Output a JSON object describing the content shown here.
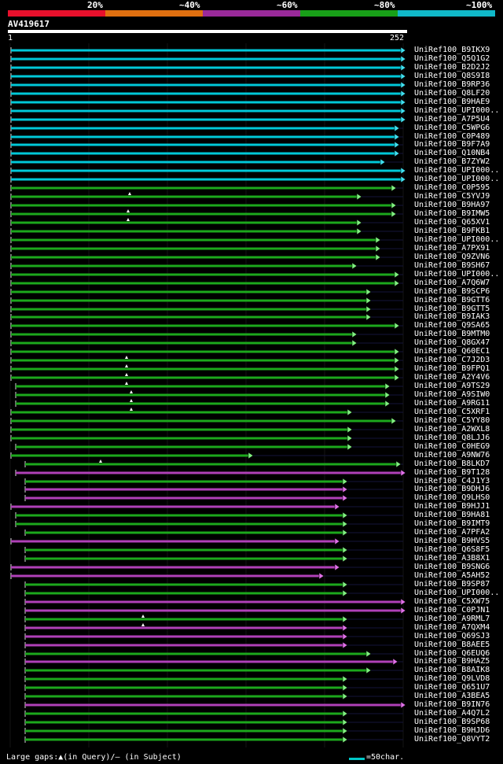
{
  "legend": {
    "labels": [
      "20%",
      "~40%",
      "~60%",
      "~80%",
      "~100%"
    ],
    "colors": [
      "#e8102c",
      "#e07010",
      "#9a2a9a",
      "#18a018",
      "#10b8c8"
    ]
  },
  "query": {
    "id": "AV419617",
    "start": "1",
    "end": "252"
  },
  "hits": [
    {
      "name": "UniRef100_B9IKX9",
      "color": "cyan"
    },
    {
      "name": "UniRef100_Q5Q1G2",
      "color": "cyan"
    },
    {
      "name": "UniRef100_B2D2J2",
      "color": "cyan"
    },
    {
      "name": "UniRef100_Q8S9I8",
      "color": "cyan"
    },
    {
      "name": "UniRef100_B9RP36",
      "color": "cyan"
    },
    {
      "name": "UniRef100_Q8LF20",
      "color": "cyan"
    },
    {
      "name": "UniRef100_B9HAE9",
      "color": "cyan"
    },
    {
      "name": "UniRef100_UPI000..",
      "color": "cyan"
    },
    {
      "name": "UniRef100_A7P5U4",
      "color": "cyan"
    },
    {
      "name": "UniRef100_C5WPG6",
      "color": "cyan"
    },
    {
      "name": "UniRef100_C0P489",
      "color": "cyan"
    },
    {
      "name": "UniRef100_B9F7A9",
      "color": "cyan"
    },
    {
      "name": "UniRef100_Q10NB4",
      "color": "cyan"
    },
    {
      "name": "UniRef100_B7ZYW2",
      "color": "cyan"
    },
    {
      "name": "UniRef100_UPI000..",
      "color": "cyan"
    },
    {
      "name": "UniRef100_UPI000..",
      "color": "cyan"
    },
    {
      "name": "UniRef100_C0P595",
      "color": "green"
    },
    {
      "name": "UniRef100_C5YVJ9",
      "color": "green"
    },
    {
      "name": "UniRef100_B9HA97",
      "color": "green"
    },
    {
      "name": "UniRef100_B9IMW5",
      "color": "green"
    },
    {
      "name": "UniRef100_Q65XV1",
      "color": "green"
    },
    {
      "name": "UniRef100_B9FKB1",
      "color": "green"
    },
    {
      "name": "UniRef100_UPI000..",
      "color": "green"
    },
    {
      "name": "UniRef100_A7PX91",
      "color": "green"
    },
    {
      "name": "UniRef100_Q9ZVN6",
      "color": "green"
    },
    {
      "name": "UniRef100_B9SH67",
      "color": "green"
    },
    {
      "name": "UniRef100_UPI000..",
      "color": "green"
    },
    {
      "name": "UniRef100_A7Q6W7",
      "color": "green"
    },
    {
      "name": "UniRef100_B9SCP6",
      "color": "green"
    },
    {
      "name": "UniRef100_B9GTT6",
      "color": "green"
    },
    {
      "name": "UniRef100_B9GTT5",
      "color": "green"
    },
    {
      "name": "UniRef100_B9IAK3",
      "color": "green"
    },
    {
      "name": "UniRef100_Q9SA65",
      "color": "green"
    },
    {
      "name": "UniRef100_B9MTM0",
      "color": "green"
    },
    {
      "name": "UniRef100_Q8GX47",
      "color": "green"
    },
    {
      "name": "UniRef100_Q60EC1",
      "color": "green"
    },
    {
      "name": "UniRef100_C7J2D3",
      "color": "green"
    },
    {
      "name": "UniRef100_B9FPQ1",
      "color": "green"
    },
    {
      "name": "UniRef100_A2Y4V6",
      "color": "green"
    },
    {
      "name": "UniRef100_A9TS29",
      "color": "green"
    },
    {
      "name": "UniRef100_A9SIW0",
      "color": "green"
    },
    {
      "name": "UniRef100_A9RG11",
      "color": "green"
    },
    {
      "name": "UniRef100_C5XRF1",
      "color": "green"
    },
    {
      "name": "UniRef100_C5YY80",
      "color": "green"
    },
    {
      "name": "UniRef100_A2WXL8",
      "color": "green"
    },
    {
      "name": "UniRef100_Q8LJJ6",
      "color": "green"
    },
    {
      "name": "UniRef100_C0HEG9",
      "color": "green"
    },
    {
      "name": "UniRef100_A9NW76",
      "color": "green"
    },
    {
      "name": "UniRef100_B8LKD7",
      "color": "green"
    },
    {
      "name": "UniRef100_B9T128",
      "color": "purple"
    },
    {
      "name": "UniRef100_C4J1Y3",
      "color": "green"
    },
    {
      "name": "UniRef100_B9DHJ6",
      "color": "purple"
    },
    {
      "name": "UniRef100_Q9LHS0",
      "color": "purple"
    },
    {
      "name": "UniRef100_B9HJJ1",
      "color": "purple"
    },
    {
      "name": "UniRef100_B9HA81",
      "color": "green"
    },
    {
      "name": "UniRef100_B9IMT9",
      "color": "green"
    },
    {
      "name": "UniRef100_A7PFA2",
      "color": "green"
    },
    {
      "name": "UniRef100_B9HVS5",
      "color": "purple"
    },
    {
      "name": "UniRef100_Q6S8F5",
      "color": "green"
    },
    {
      "name": "UniRef100_A3B8X1",
      "color": "green"
    },
    {
      "name": "UniRef100_B9SNG6",
      "color": "purple"
    },
    {
      "name": "UniRef100_A5AH52",
      "color": "purple"
    },
    {
      "name": "UniRef100_B9SP87",
      "color": "green"
    },
    {
      "name": "UniRef100_UPI000..",
      "color": "green"
    },
    {
      "name": "UniRef100_C5XW75",
      "color": "purple"
    },
    {
      "name": "UniRef100_C0PJN1",
      "color": "purple"
    },
    {
      "name": "UniRef100_A9RML7",
      "color": "green"
    },
    {
      "name": "UniRef100_A7QXM4",
      "color": "purple"
    },
    {
      "name": "UniRef100_Q69SJ3",
      "color": "purple"
    },
    {
      "name": "UniRef100_B8AEE5",
      "color": "purple"
    },
    {
      "name": "UniRef100_Q6EUQ6",
      "color": "green"
    },
    {
      "name": "UniRef100_B9HAZ5",
      "color": "purple"
    },
    {
      "name": "UniRef100_B8AIK8",
      "color": "green"
    },
    {
      "name": "UniRef100_Q9LVD8",
      "color": "green"
    },
    {
      "name": "UniRef100_Q651U7",
      "color": "green"
    },
    {
      "name": "UniRef100_A3BEA5",
      "color": "green"
    },
    {
      "name": "UniRef100_B9IN76",
      "color": "purple"
    },
    {
      "name": "UniRef100_A4Q7L2",
      "color": "green"
    },
    {
      "name": "UniRef100_B9SP68",
      "color": "green"
    },
    {
      "name": "UniRef100_B9HJD6",
      "color": "green"
    },
    {
      "name": "UniRef100_Q8VYT2",
      "color": "green"
    }
  ],
  "footer": {
    "text": "Large gaps:▲(in Query)/– (in Subject)",
    "scale_label": "=50char."
  }
}
